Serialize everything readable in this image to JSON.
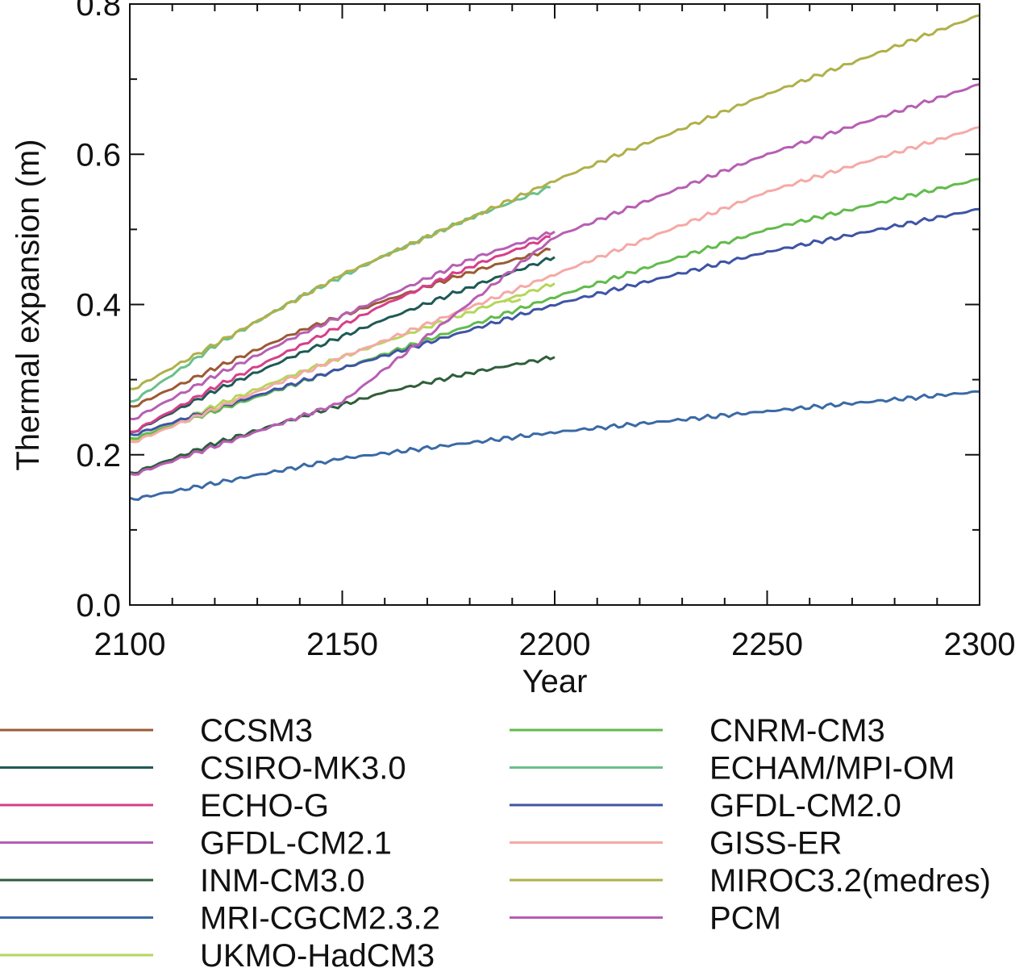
{
  "chart_data": {
    "type": "line",
    "title": "",
    "xlabel": "Year",
    "ylabel": "Thermal expansion (m)",
    "xlim": [
      2100,
      2300
    ],
    "ylim": [
      0.0,
      0.8
    ],
    "xticks": [
      "2100",
      "2150",
      "2200",
      "2250",
      "2300"
    ],
    "yticks": [
      "0.0",
      "0.2",
      "0.4",
      "0.6",
      "0.8"
    ],
    "grid": false,
    "legend_position": "bottom",
    "series": [
      {
        "name": "CCSM3",
        "color": "#9b5a34",
        "x": [
          2100,
          2120,
          2140,
          2160,
          2180,
          2199
        ],
        "y": [
          0.262,
          0.315,
          0.365,
          0.405,
          0.443,
          0.473
        ]
      },
      {
        "name": "CSIRO-MK3.0",
        "color": "#1e5a55",
        "x": [
          2100,
          2120,
          2140,
          2160,
          2180,
          2200
        ],
        "y": [
          0.228,
          0.285,
          0.335,
          0.38,
          0.423,
          0.463
        ]
      },
      {
        "name": "ECHO-G",
        "color": "#d63f8a",
        "x": [
          2100,
          2120,
          2140,
          2160,
          2180,
          2199
        ],
        "y": [
          0.228,
          0.29,
          0.345,
          0.4,
          0.45,
          0.49
        ]
      },
      {
        "name": "GFDL-CM2.1",
        "color": "#b65fb3",
        "x": [
          2100,
          2120,
          2140,
          2160,
          2180,
          2200
        ],
        "y": [
          0.245,
          0.305,
          0.36,
          0.41,
          0.46,
          0.497
        ]
      },
      {
        "name": "INM-CM3.0",
        "color": "#2f5e3b",
        "x": [
          2100,
          2120,
          2140,
          2160,
          2180,
          2200
        ],
        "y": [
          0.174,
          0.215,
          0.25,
          0.283,
          0.309,
          0.33
        ]
      },
      {
        "name": "MRI-CGCM2.3.2",
        "color": "#3a6aa5",
        "x": [
          2100,
          2150,
          2200,
          2250,
          2300
        ],
        "y": [
          0.14,
          0.195,
          0.23,
          0.258,
          0.284
        ]
      },
      {
        "name": "UKMO-HadCM3",
        "color": "#b6d65a",
        "x": [
          2100,
          2120,
          2140,
          2160,
          2180,
          2200
        ],
        "y": [
          0.218,
          0.265,
          0.31,
          0.35,
          0.39,
          0.428
        ]
      },
      {
        "name": "CNRM-CM3",
        "color": "#62bb4c",
        "x": [
          2100,
          2150,
          2200,
          2250,
          2300
        ],
        "y": [
          0.22,
          0.315,
          0.41,
          0.5,
          0.567
        ]
      },
      {
        "name": "ECHAM/MPI-OM",
        "color": "#6ac08c",
        "x": [
          2100,
          2120,
          2140,
          2160,
          2180,
          2199
        ],
        "y": [
          0.268,
          0.345,
          0.41,
          0.465,
          0.515,
          0.556
        ]
      },
      {
        "name": "GFDL-CM2.0",
        "color": "#3f54a6",
        "x": [
          2100,
          2150,
          2200,
          2250,
          2300
        ],
        "y": [
          0.225,
          0.315,
          0.4,
          0.47,
          0.527
        ]
      },
      {
        "name": "GISS-ER",
        "color": "#f5a9a6",
        "x": [
          2100,
          2150,
          2200,
          2250,
          2300
        ],
        "y": [
          0.215,
          0.33,
          0.44,
          0.55,
          0.636
        ]
      },
      {
        "name": "MIROC3.2(medres)",
        "color": "#b0b04a",
        "x": [
          2100,
          2150,
          2200,
          2250,
          2300
        ],
        "y": [
          0.285,
          0.44,
          0.565,
          0.68,
          0.785
        ]
      },
      {
        "name": "PCM",
        "color": "#b65fb3",
        "x": [
          2100,
          2150,
          2200,
          2250,
          2300
        ],
        "y": [
          0.172,
          0.27,
          0.49,
          0.6,
          0.693
        ]
      }
    ],
    "fragment_series": [
      {
        "color": "#b6d65a",
        "x": [
          2188,
          2192
        ],
        "y": [
          0.403,
          0.407
        ]
      }
    ]
  }
}
